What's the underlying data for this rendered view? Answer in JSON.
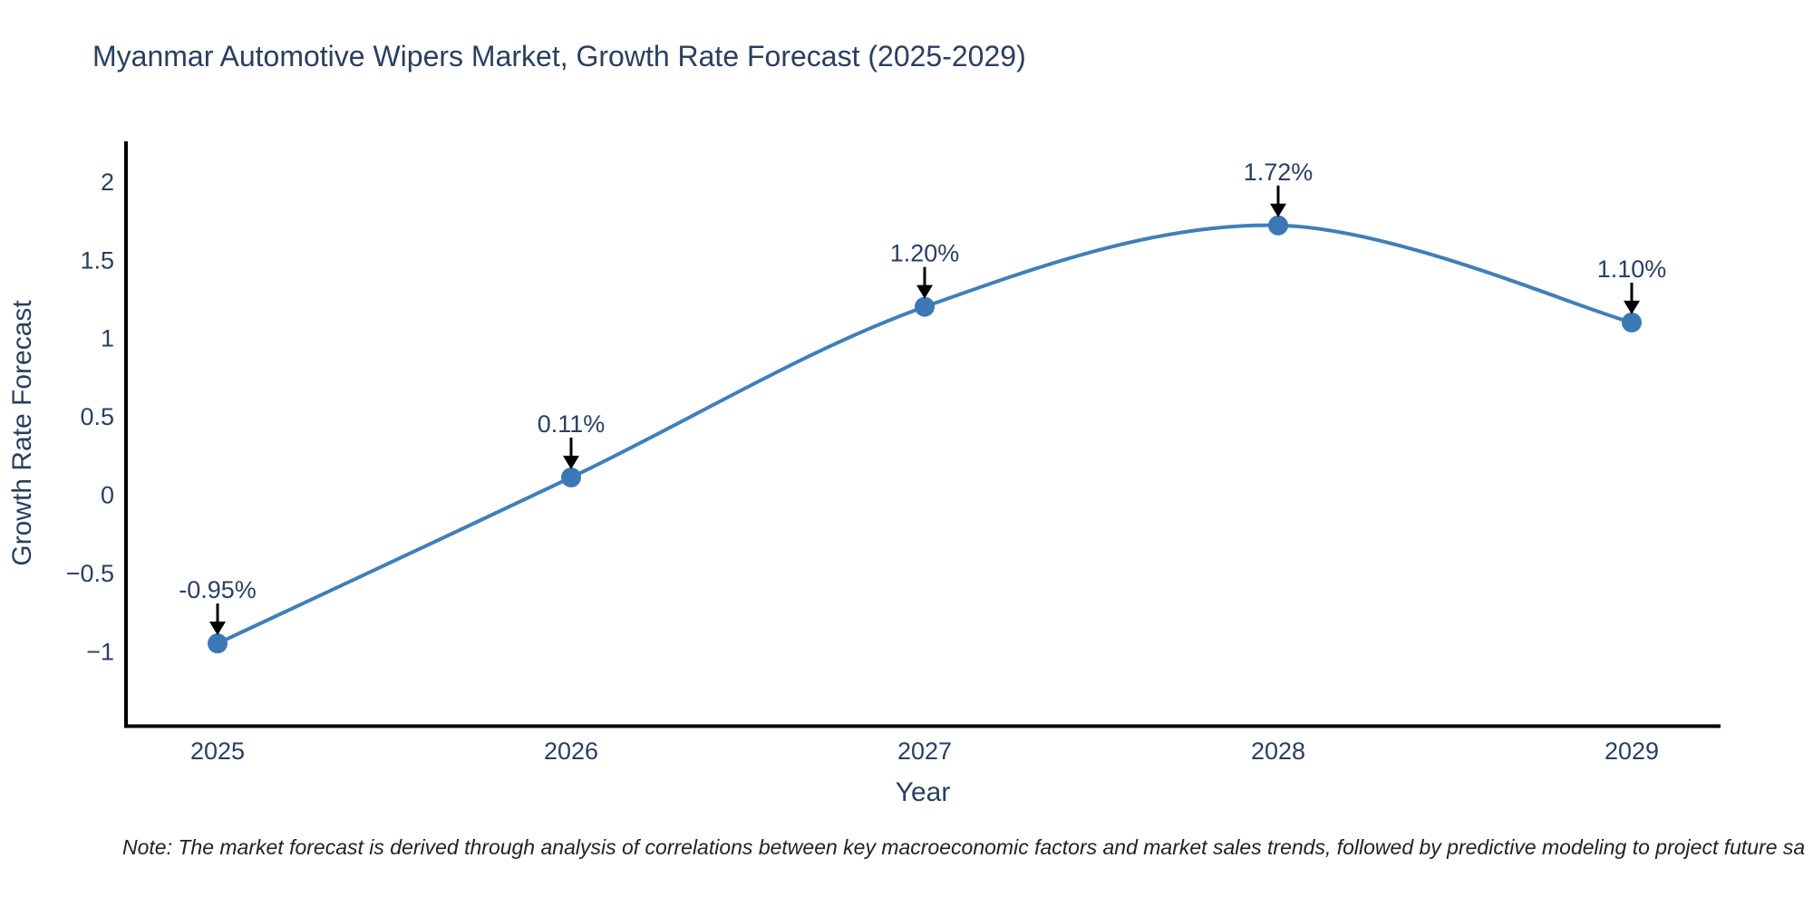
{
  "chart_data": {
    "type": "line",
    "line_shape": "spline",
    "title": "Myanmar Automotive Wipers Market, Growth Rate Forecast (2025-2029)",
    "xlabel": "Year",
    "ylabel": "Growth Rate Forecast",
    "categories": [
      "2025",
      "2026",
      "2027",
      "2028",
      "2029"
    ],
    "values": [
      -0.95,
      0.11,
      1.2,
      1.72,
      1.1
    ],
    "point_labels": [
      "-0.95%",
      "0.11%",
      "1.20%",
      "1.72%",
      "1.10%"
    ],
    "yticks": [
      {
        "label": "2",
        "value": 2
      },
      {
        "label": "1.5",
        "value": 1.5
      },
      {
        "label": "1",
        "value": 1
      },
      {
        "label": "0.5",
        "value": 0.5
      },
      {
        "label": "0",
        "value": 0
      },
      {
        "label": "−0.5",
        "value": -0.5
      },
      {
        "label": "−1",
        "value": -1
      }
    ],
    "ylim": [
      -1.49,
      2.24
    ],
    "grid": false,
    "legend": false,
    "annotation_style": "arrow-down-to-point",
    "note": "Note: The market forecast is derived through analysis of correlations between key macroeconomic factors and market sales trends, followed by predictive modeling to project future sa",
    "colors": {
      "line": "#3f7fba",
      "marker": "#3c78b4",
      "axis_line": "#000000",
      "tick_text": "#2a3f5f",
      "title_text": "#2a3f5f",
      "annotation_text": "#2a3f5f",
      "arrow": "#000000",
      "note_text": "#222222",
      "background": "#ffffff"
    }
  }
}
